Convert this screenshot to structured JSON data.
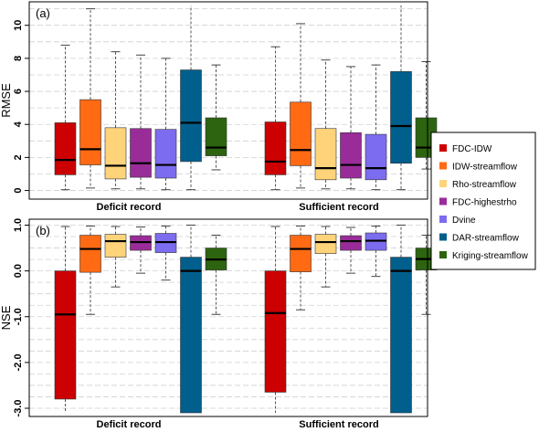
{
  "chart_data": {
    "type": "boxplot",
    "legend_position": "right",
    "series": [
      {
        "name": "FDC-IDW",
        "color": "#cc0000"
      },
      {
        "name": "IDW-streamflow",
        "color": "#ff6a13"
      },
      {
        "name": "Rho-streamflow",
        "color": "#ffd37a"
      },
      {
        "name": "FDC-highestrho",
        "color": "#9a2c9a"
      },
      {
        "name": "Dvine",
        "color": "#7c6cf0"
      },
      {
        "name": "DAR-streamflow",
        "color": "#005f8c"
      },
      {
        "name": "Kriging-streamflow",
        "color": "#2d6410"
      }
    ],
    "panels": [
      {
        "label": "(a)",
        "ylabel": "RMSE",
        "ylim": [
          -0.3,
          11.2
        ],
        "yticks": [
          0,
          2,
          4,
          6,
          8,
          10
        ],
        "ytick_labels": [
          "0",
          "2",
          "4",
          "6",
          "8",
          "10"
        ],
        "groups": [
          {
            "label": "Deficit record",
            "boxes": [
              {
                "whisker_low": 0.05,
                "q1": 0.95,
                "median": 1.85,
                "q3": 4.1,
                "whisker_high": 8.8
              },
              {
                "whisker_low": 0.15,
                "q1": 1.55,
                "median": 2.5,
                "q3": 5.5,
                "whisker_high": 11.0
              },
              {
                "whisker_low": 0.1,
                "q1": 0.7,
                "median": 1.5,
                "q3": 3.8,
                "whisker_high": 8.4
              },
              {
                "whisker_low": 0.1,
                "q1": 0.8,
                "median": 1.65,
                "q3": 3.75,
                "whisker_high": 8.2
              },
              {
                "whisker_low": 0.05,
                "q1": 0.75,
                "median": 1.55,
                "q3": 3.7,
                "whisker_high": 8.0
              },
              {
                "whisker_low": 0.05,
                "q1": 1.75,
                "median": 4.1,
                "q3": 7.3,
                "whisker_high": 11.2
              },
              {
                "whisker_low": 1.25,
                "q1": 2.1,
                "median": 2.6,
                "q3": 4.4,
                "whisker_high": 7.6
              }
            ]
          },
          {
            "label": "Sufficient record",
            "boxes": [
              {
                "whisker_low": 0.05,
                "q1": 0.95,
                "median": 1.75,
                "q3": 4.15,
                "whisker_high": 8.7
              },
              {
                "whisker_low": 0.15,
                "q1": 1.5,
                "median": 2.45,
                "q3": 5.35,
                "whisker_high": 10.1
              },
              {
                "whisker_low": 0.1,
                "q1": 0.65,
                "median": 1.35,
                "q3": 3.75,
                "whisker_high": 7.9
              },
              {
                "whisker_low": 0.1,
                "q1": 0.75,
                "median": 1.55,
                "q3": 3.5,
                "whisker_high": 7.5
              },
              {
                "whisker_low": 0.05,
                "q1": 0.65,
                "median": 1.35,
                "q3": 3.4,
                "whisker_high": 7.6
              },
              {
                "whisker_low": 0.05,
                "q1": 1.65,
                "median": 3.9,
                "q3": 7.2,
                "whisker_high": 11.2
              },
              {
                "whisker_low": 1.3,
                "q1": 2.0,
                "median": 2.6,
                "q3": 4.4,
                "whisker_high": 7.8
              }
            ]
          }
        ]
      },
      {
        "label": "(b)",
        "ylabel": "NSE",
        "ylim": [
          -3.1,
          1.05
        ],
        "yticks": [
          1,
          0,
          -1,
          -2,
          -3
        ],
        "ytick_labels": [
          "1.0",
          "0.0",
          "-1.0",
          "-2.0",
          "-3.0"
        ],
        "groups": [
          {
            "label": "Deficit record",
            "boxes": [
              {
                "whisker_low": -3.1,
                "q1": -2.8,
                "median": -0.95,
                "q3": 0.0,
                "whisker_high": 0.97
              },
              {
                "whisker_low": -0.95,
                "q1": -0.03,
                "median": 0.48,
                "q3": 0.78,
                "whisker_high": 0.98
              },
              {
                "whisker_low": -0.35,
                "q1": 0.3,
                "median": 0.65,
                "q3": 0.8,
                "whisker_high": 0.97
              },
              {
                "whisker_low": -0.05,
                "q1": 0.45,
                "median": 0.63,
                "q3": 0.77,
                "whisker_high": 0.96
              },
              {
                "whisker_low": -0.2,
                "q1": 0.4,
                "median": 0.63,
                "q3": 0.82,
                "whisker_high": 0.98
              },
              {
                "whisker_low": -3.1,
                "q1": -3.1,
                "median": 0.0,
                "q3": 0.3,
                "whisker_high": 1.0
              },
              {
                "whisker_low": -0.95,
                "q1": 0.02,
                "median": 0.25,
                "q3": 0.5,
                "whisker_high": 0.78
              }
            ]
          },
          {
            "label": "Sufficient record",
            "boxes": [
              {
                "whisker_low": -3.1,
                "q1": -2.65,
                "median": -0.92,
                "q3": 0.0,
                "whisker_high": 0.97
              },
              {
                "whisker_low": -0.85,
                "q1": -0.02,
                "median": 0.48,
                "q3": 0.78,
                "whisker_high": 0.98
              },
              {
                "whisker_low": -0.35,
                "q1": 0.38,
                "median": 0.63,
                "q3": 0.8,
                "whisker_high": 0.97
              },
              {
                "whisker_low": -0.05,
                "q1": 0.45,
                "median": 0.65,
                "q3": 0.77,
                "whisker_high": 0.95
              },
              {
                "whisker_low": -0.12,
                "q1": 0.45,
                "median": 0.66,
                "q3": 0.83,
                "whisker_high": 0.98
              },
              {
                "whisker_low": -3.1,
                "q1": -3.1,
                "median": 0.0,
                "q3": 0.3,
                "whisker_high": 1.0
              },
              {
                "whisker_low": -0.95,
                "q1": 0.02,
                "median": 0.26,
                "q3": 0.5,
                "whisker_high": 0.78
              }
            ]
          }
        ]
      }
    ]
  }
}
